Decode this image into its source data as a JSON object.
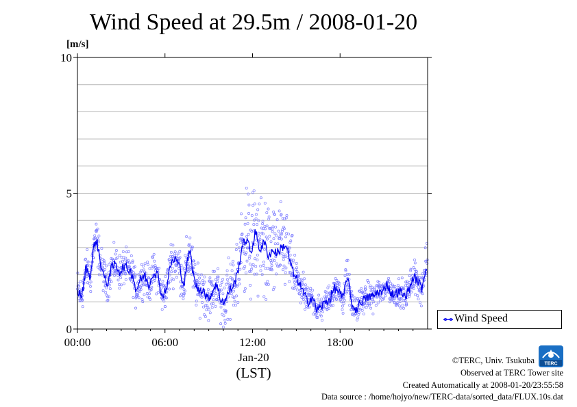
{
  "chart_data": {
    "type": "scatter",
    "title": "Wind Speed at 29.5m / 2008-01-20",
    "ylabel": "[m/s]",
    "xlabel": "(LST)",
    "date_label": "Jan-20",
    "ylim": [
      0,
      10
    ],
    "xlim": [
      0,
      24
    ],
    "x_unit": "hours LST",
    "yticks": [
      {
        "value": 0,
        "label": "0"
      },
      {
        "value": 5,
        "label": "5"
      },
      {
        "value": 10,
        "label": "10"
      }
    ],
    "xticks": [
      {
        "value": 0,
        "label": "00:00"
      },
      {
        "value": 6,
        "label": "06:00"
      },
      {
        "value": 12,
        "label": "12:00"
      },
      {
        "value": 18,
        "label": "18:00"
      }
    ],
    "grid": true,
    "legend_position": "lower-right outside",
    "series": [
      {
        "name": "Wind Speed",
        "color": "#0000ee",
        "scatter_color": "#7b7bff",
        "x": [
          0.0,
          0.3,
          0.6,
          0.9,
          1.1,
          1.3,
          1.6,
          2.0,
          2.3,
          2.6,
          2.9,
          3.2,
          3.5,
          3.8,
          4.0,
          4.3,
          4.6,
          4.9,
          5.2,
          5.5,
          5.8,
          6.1,
          6.4,
          6.7,
          7.0,
          7.3,
          7.5,
          7.7,
          8.0,
          8.3,
          8.6,
          8.9,
          9.2,
          9.5,
          9.8,
          10.1,
          10.4,
          10.7,
          11.0,
          11.3,
          11.6,
          11.9,
          12.2,
          12.5,
          12.8,
          13.1,
          13.4,
          13.7,
          14.0,
          14.3,
          14.6,
          14.9,
          15.2,
          15.5,
          15.8,
          16.1,
          16.4,
          16.7,
          17.0,
          17.3,
          17.6,
          17.9,
          18.2,
          18.5,
          18.8,
          19.1,
          19.4,
          19.7,
          20.0,
          20.3,
          20.6,
          20.9,
          21.2,
          21.5,
          21.8,
          22.1,
          22.4,
          22.7,
          23.0,
          23.3,
          23.6,
          23.9
        ],
        "y": [
          1.4,
          1.2,
          2.3,
          1.9,
          3.0,
          3.3,
          2.4,
          1.6,
          2.2,
          2.4,
          2.1,
          2.3,
          2.2,
          2.0,
          1.4,
          1.8,
          2.0,
          1.6,
          2.1,
          2.0,
          1.2,
          1.5,
          2.4,
          2.6,
          2.3,
          1.6,
          2.4,
          2.9,
          1.8,
          1.4,
          1.5,
          1.1,
          1.3,
          1.7,
          1.1,
          1.0,
          1.4,
          1.6,
          2.1,
          3.1,
          3.3,
          2.8,
          3.6,
          2.9,
          3.2,
          2.7,
          2.9,
          2.8,
          3.0,
          3.1,
          2.4,
          1.9,
          1.7,
          1.3,
          1.0,
          1.2,
          0.7,
          0.8,
          1.0,
          1.1,
          1.5,
          1.4,
          1.1,
          2.0,
          0.9,
          0.7,
          1.0,
          1.1,
          1.2,
          1.2,
          1.4,
          1.3,
          1.7,
          1.3,
          1.3,
          1.4,
          1.2,
          1.4,
          1.9,
          1.8,
          1.5,
          2.3
        ],
        "spread": [
          0.5,
          0.4,
          0.4,
          0.4,
          0.4,
          0.5,
          0.4,
          0.4,
          0.4,
          0.4,
          0.4,
          0.4,
          0.4,
          0.4,
          0.4,
          0.4,
          0.4,
          0.4,
          0.4,
          0.4,
          0.4,
          0.4,
          0.5,
          0.5,
          0.5,
          0.5,
          0.6,
          0.6,
          0.5,
          0.5,
          0.5,
          0.5,
          0.5,
          0.5,
          0.6,
          0.6,
          0.7,
          0.8,
          0.9,
          1.0,
          1.1,
          1.2,
          1.2,
          1.2,
          1.2,
          1.1,
          1.1,
          1.0,
          1.0,
          0.9,
          0.7,
          0.5,
          0.4,
          0.4,
          0.3,
          0.3,
          0.3,
          0.3,
          0.3,
          0.3,
          0.3,
          0.3,
          0.3,
          0.4,
          0.3,
          0.3,
          0.3,
          0.3,
          0.3,
          0.3,
          0.3,
          0.3,
          0.3,
          0.3,
          0.3,
          0.3,
          0.3,
          0.3,
          0.4,
          0.4,
          0.4,
          0.5
        ]
      }
    ]
  },
  "legend": {
    "label": "Wind Speed"
  },
  "credits": {
    "line1": "©TERC, Univ. Tsukuba",
    "line2": "Observed at TERC Tower site",
    "line3": "Created Automatically at 2008-01-20/23:55:58",
    "line4": "Data source : /home/hojyo/new/TERC-data/sorted_data/FLUX.10s.dat"
  },
  "logo": {
    "text": "TERC",
    "icon": "terc-logo-icon",
    "color": "#1a6fc4"
  }
}
